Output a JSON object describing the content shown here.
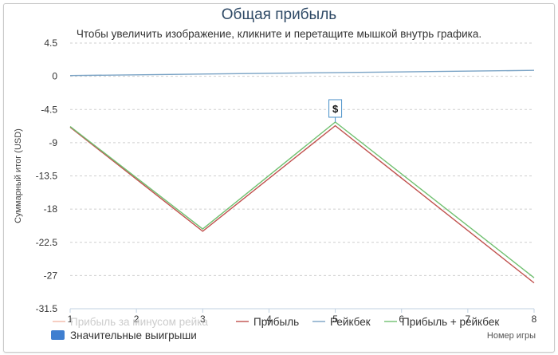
{
  "chart_data": {
    "type": "line",
    "title": "Общая прибыль",
    "subtitle": "Чтобы увеличить изображение, кликните и перетащите мышкой внутрь графика.",
    "ylabel": "Суммарный итог (USD)",
    "xlabel": "Номер игры",
    "ylim": [
      -31.5,
      4.5
    ],
    "yticks": [
      "4.5",
      "0",
      "-4.5",
      "-9",
      "-13.5",
      "-18",
      "-22.5",
      "-27",
      "-31.5"
    ],
    "xlim": [
      1,
      8
    ],
    "xticks": [
      "1",
      "2",
      "3",
      "4",
      "5",
      "6",
      "7",
      "8"
    ],
    "grid": true,
    "series": [
      {
        "name": "Прибыль за минусом рейка",
        "color": "#f2b8a8",
        "x": [
          1,
          8
        ],
        "values": [
          0,
          0
        ],
        "hidden": true
      },
      {
        "name": "Прибыль",
        "color": "#c0504d",
        "x": [
          1,
          3,
          5,
          8
        ],
        "values": [
          -6.9,
          -21.0,
          -6.7,
          -28.0
        ]
      },
      {
        "name": "Рейкбек",
        "color": "#7aa3c5",
        "x": [
          1,
          8
        ],
        "values": [
          0.1,
          0.8
        ]
      },
      {
        "name": "Прибыль + рейкбек",
        "color": "#70c070",
        "x": [
          1,
          3,
          5,
          8
        ],
        "values": [
          -6.8,
          -20.7,
          -6.2,
          -27.3
        ]
      }
    ],
    "big_wins_legend": {
      "name": "Значительные выигрыши",
      "color": "#3f7fd0"
    },
    "annotation": {
      "label": "$",
      "x": 5,
      "y": -6.2
    }
  }
}
